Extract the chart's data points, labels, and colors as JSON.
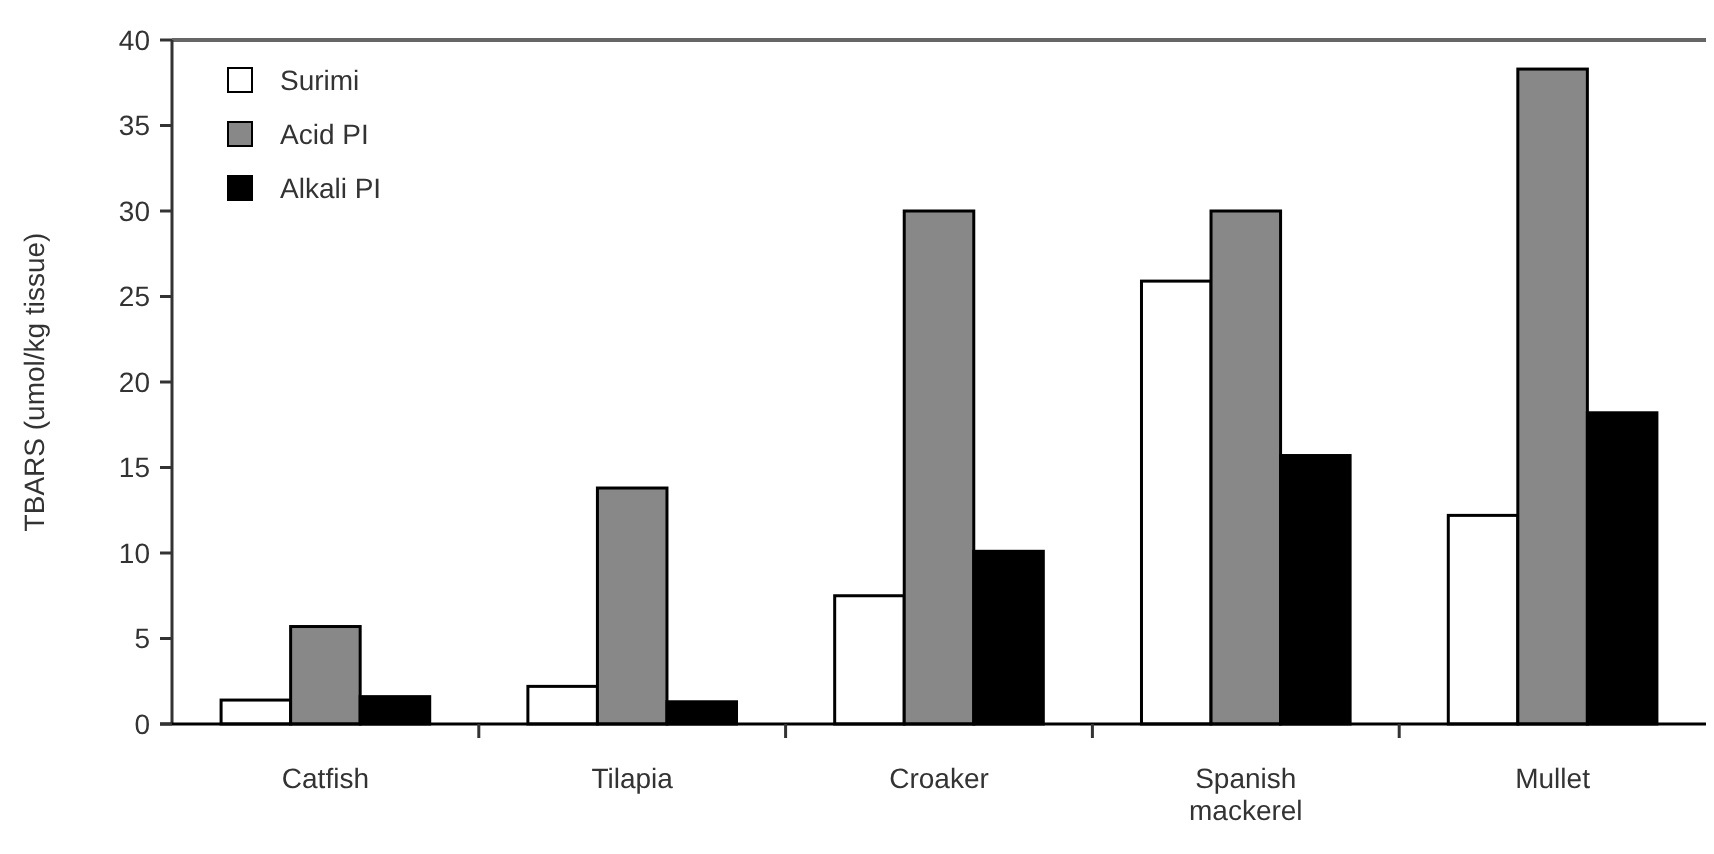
{
  "chart_data": {
    "type": "bar",
    "ylabel": "TBARS (umol/kg tissue)",
    "categories": [
      "Catfish",
      "Tilapia",
      "Croaker",
      "Spanish mackerel",
      "Mullet"
    ],
    "series": [
      {
        "name": "Surimi",
        "color": "#ffffff",
        "values": [
          1.4,
          2.2,
          7.5,
          25.9,
          12.2
        ]
      },
      {
        "name": "Acid PI",
        "color": "#888888",
        "values": [
          5.7,
          13.8,
          30.0,
          30.0,
          38.3
        ]
      },
      {
        "name": "Alkali PI",
        "color": "#000000",
        "values": [
          1.6,
          1.3,
          10.1,
          15.7,
          18.2
        ]
      }
    ],
    "ylim": [
      0,
      40
    ],
    "yticks": [
      0,
      5,
      10,
      15,
      20,
      25,
      30,
      35,
      40
    ],
    "legend": "top left",
    "grid": false
  }
}
